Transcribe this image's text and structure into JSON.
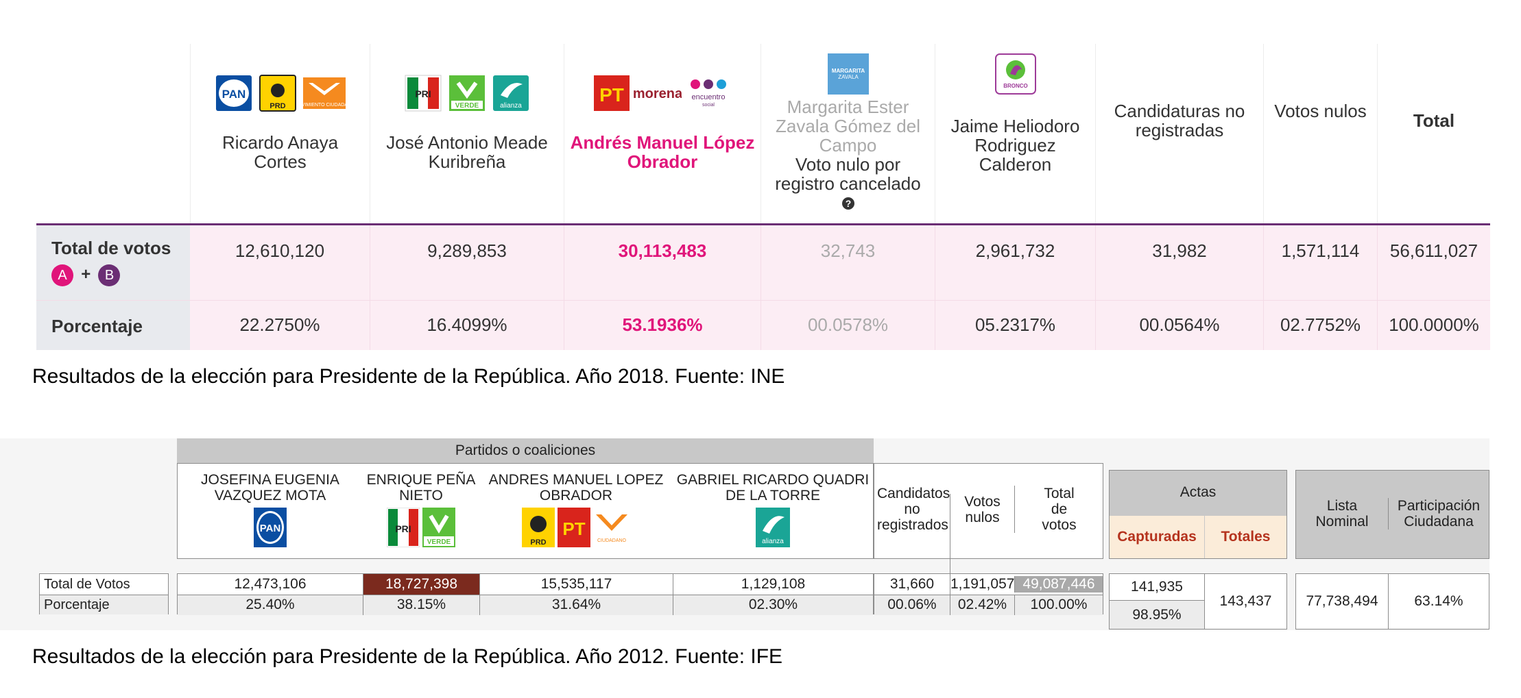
{
  "y2018": {
    "header_total": "Total",
    "columns": [
      {
        "name": "Ricardo Anaya Cortes",
        "logos": [
          "PAN",
          "PRD",
          "MOVIMIENTO CIUDADANO"
        ],
        "votes": "12,610,120",
        "pct": "22.2750%"
      },
      {
        "name": "José Antonio Meade Kuribreña",
        "logos": [
          "PRI",
          "VERDE",
          "alianza"
        ],
        "votes": "9,289,853",
        "pct": "16.4099%"
      },
      {
        "name": "Andrés Manuel López Obrador",
        "logos": [
          "PT",
          "morena",
          "encuentro social"
        ],
        "votes": "30,113,483",
        "pct": "53.1936%"
      },
      {
        "name": "Margarita Ester Zavala Gómez del Campo",
        "note": "Voto nulo por registro cancelado",
        "logos": [
          "MARGARITA ZAVALA"
        ],
        "votes": "32,743",
        "pct": "00.0578%"
      },
      {
        "name": "Jaime Heliodoro Rodriguez Calderon",
        "logos": [
          "BRONCO INDEPENDIENTE"
        ],
        "votes": "2,961,732",
        "pct": "05.2317%"
      },
      {
        "name": "Candidaturas no registradas",
        "votes": "31,982",
        "pct": "00.0564%"
      },
      {
        "name": "Votos nulos",
        "votes": "1,571,114",
        "pct": "02.7752%"
      },
      {
        "name": "Total",
        "votes": "56,611,027",
        "pct": "100.0000%"
      }
    ],
    "row_votes_label": "Total de votos",
    "badge_a": "A",
    "badge_plus": "+",
    "badge_b": "B",
    "row_pct_label": "Porcentaje",
    "help_icon": "question-circle-icon",
    "caption": "Resultados de la elección para Presidente de la República. Año 2018. Fuente: INE",
    "colors": {
      "winner": "#e0157a",
      "rule": "#6b2e74",
      "row_bg": "#fcedf4",
      "label_bg": "#e8eaee"
    }
  },
  "y2012": {
    "band_label": "Partidos o coaliciones",
    "candidates": [
      {
        "name": "JOSEFINA EUGENIA VAZQUEZ MOTA",
        "logos": [
          "PAN"
        ],
        "votes": "12,473,106",
        "pct": "25.40%"
      },
      {
        "name": "ENRIQUE PEÑA NIETO",
        "logos": [
          "PRI",
          "VERDE"
        ],
        "votes": "18,727,398",
        "pct": "38.15%"
      },
      {
        "name": "ANDRES MANUEL LOPEZ OBRADOR",
        "logos": [
          "PRD",
          "PT",
          "MOVIMIENTO CIUDADANO"
        ],
        "votes": "15,535,117",
        "pct": "31.64%"
      },
      {
        "name": "GABRIEL RICARDO QUADRI DE LA TORRE",
        "logos": [
          "alianza"
        ],
        "votes": "1,129,108",
        "pct": "02.30%"
      }
    ],
    "no_reg": {
      "label": "Candidatos no registrados",
      "votes": "31,660",
      "pct": "00.06%"
    },
    "nulos": {
      "label": "Votos nulos",
      "votes": "1,191,057",
      "pct": "02.42%"
    },
    "total": {
      "label": "Total de votos",
      "votes": "49,087,446",
      "pct": "100.00%"
    },
    "actas": {
      "label": "Actas",
      "capturadas": "Capturadas",
      "totales": "Totales",
      "cap_value": "141,935",
      "cap_pct": "98.95%",
      "tot_value": "143,437"
    },
    "lista": {
      "label": "Lista Nominal",
      "value": "77,738,494"
    },
    "participacion": {
      "label": "Participación Ciudadana",
      "value": "63.14%"
    },
    "row_votes_label": "Total de Votos",
    "row_pct_label": "Porcentaje",
    "caption": "Resultados de la elección para Presidente de la República. Año 2012. Fuente: IFE",
    "colors": {
      "winner_bg": "#7b2a1e",
      "band": "#c8c8c8",
      "actas_sub": "#fbecd9",
      "actas_text": "#b5331e"
    }
  }
}
